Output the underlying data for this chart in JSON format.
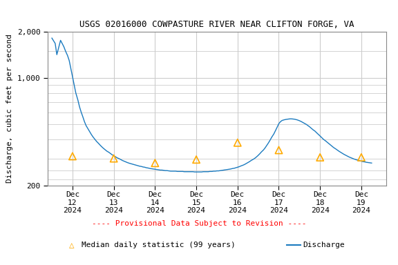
{
  "title": "USGS 02016000 COWPASTURE RIVER NEAR CLIFTON FORGE, VA",
  "ylabel": "Discharge, cubic feet per second",
  "ylim": [
    200,
    2000
  ],
  "background_color": "#ffffff",
  "grid_color": "#cccccc",
  "discharge_color": "#1a7abf",
  "median_color": "#ffaa00",
  "provisional_color": "#ff0000",
  "discharge_x": [
    0.0,
    0.04,
    0.08,
    0.12,
    0.17,
    0.21,
    0.25,
    0.29,
    0.33,
    0.38,
    0.42,
    0.46,
    0.5,
    0.54,
    0.58,
    0.63,
    0.67,
    0.71,
    0.75,
    0.79,
    0.83,
    0.88,
    0.92,
    0.96,
    1.0,
    1.04,
    1.08,
    1.13,
    1.17,
    1.21,
    1.25,
    1.29,
    1.33,
    1.38,
    1.42,
    1.46,
    1.5,
    1.54,
    1.58,
    1.63,
    1.67,
    1.71,
    1.75,
    1.79,
    1.83,
    1.88,
    1.92,
    1.96,
    2.0,
    2.04,
    2.08,
    2.13,
    2.17,
    2.21,
    2.25,
    2.29,
    2.33,
    2.38,
    2.42,
    2.46,
    2.5,
    2.54,
    2.58,
    2.63,
    2.67,
    2.71,
    2.75,
    2.79,
    2.83,
    2.88,
    2.92,
    2.96,
    3.0,
    3.04,
    3.08,
    3.13,
    3.17,
    3.21,
    3.25,
    3.29,
    3.33,
    3.38,
    3.42,
    3.46,
    3.5,
    3.54,
    3.58,
    3.63,
    3.67,
    3.71,
    3.75,
    3.79,
    3.83,
    3.88,
    3.92,
    3.96,
    4.0,
    4.04,
    4.08,
    4.13,
    4.17,
    4.21,
    4.25,
    4.29,
    4.33,
    4.38,
    4.42,
    4.46,
    4.5,
    4.54,
    4.58,
    4.63,
    4.67,
    4.71,
    4.75,
    4.79,
    4.83,
    4.88,
    4.92,
    4.96,
    5.0,
    5.04,
    5.08,
    5.13,
    5.17,
    5.21,
    5.25,
    5.29,
    5.33,
    5.38,
    5.42,
    5.46,
    5.5,
    5.54,
    5.58,
    5.63,
    5.67,
    5.71,
    5.75,
    5.79,
    5.83,
    5.88,
    5.92,
    5.96,
    6.0,
    6.04,
    6.08,
    6.13,
    6.17,
    6.21,
    6.25,
    6.29,
    6.33,
    6.38,
    6.42,
    6.46,
    6.5,
    6.54,
    6.58,
    6.63,
    6.67,
    6.71,
    6.75,
    6.79,
    6.83,
    6.88,
    6.92,
    6.96,
    7.0,
    7.04,
    7.08,
    7.13,
    7.17,
    7.21,
    7.25,
    7.29,
    7.33,
    7.38,
    7.42,
    7.46,
    7.5,
    7.54,
    7.58,
    7.63,
    7.67,
    7.71,
    7.75
  ],
  "discharge_y": [
    1820,
    1750,
    1680,
    1420,
    1600,
    1760,
    1680,
    1600,
    1500,
    1400,
    1300,
    1150,
    1020,
    900,
    800,
    720,
    650,
    600,
    560,
    520,
    490,
    465,
    445,
    428,
    413,
    400,
    388,
    376,
    366,
    357,
    349,
    342,
    335,
    329,
    323,
    317,
    312,
    308,
    303,
    299,
    295,
    291,
    288,
    285,
    282,
    279,
    277,
    275,
    273,
    271,
    269,
    267,
    266,
    264,
    263,
    261,
    260,
    258,
    257,
    256,
    255,
    254,
    253,
    252,
    252,
    251,
    250,
    250,
    249,
    248,
    248,
    248,
    248,
    247,
    247,
    247,
    247,
    246,
    246,
    246,
    246,
    246,
    246,
    245,
    245,
    245,
    245,
    245,
    246,
    246,
    246,
    246,
    247,
    247,
    248,
    248,
    249,
    249,
    250,
    251,
    252,
    253,
    254,
    255,
    256,
    258,
    259,
    261,
    263,
    265,
    268,
    271,
    274,
    278,
    282,
    286,
    291,
    296,
    301,
    307,
    314,
    322,
    331,
    341,
    352,
    365,
    379,
    395,
    413,
    433,
    455,
    479,
    505,
    520,
    530,
    535,
    538,
    540,
    542,
    543,
    542,
    540,
    537,
    533,
    528,
    522,
    515,
    507,
    499,
    490,
    481,
    471,
    461,
    451,
    440,
    430,
    420,
    410,
    400,
    391,
    383,
    375,
    367,
    360,
    353,
    346,
    340,
    334,
    329,
    324,
    319,
    314,
    310,
    306,
    303,
    300,
    297,
    294,
    292,
    290,
    288,
    286,
    285,
    283,
    282,
    281,
    280
  ],
  "median_x": [
    0.5,
    1.5,
    2.5,
    3.5,
    4.5,
    5.5,
    6.5,
    7.5
  ],
  "median_y": [
    310,
    300,
    280,
    295,
    380,
    340,
    305,
    305
  ],
  "xtick_positions": [
    0.5,
    1.5,
    2.5,
    3.5,
    4.5,
    5.5,
    6.5,
    7.5
  ],
  "xtick_labels": [
    "Dec\n12\n2024",
    "Dec\n13\n2024",
    "Dec\n14\n2024",
    "Dec\n15\n2024",
    "Dec\n16\n2024",
    "Dec\n17\n2024",
    "Dec\n18\n2024",
    "Dec\n19\n2024"
  ],
  "yticks": [
    200,
    1000,
    2000
  ],
  "legend_provisional_text": "---- Provisional Data Subject to Revision ----",
  "legend_median_text": "Median daily statistic (99 years)",
  "legend_discharge_text": "Discharge",
  "title_fontsize": 9,
  "axis_fontsize": 8,
  "tick_fontsize": 8,
  "legend_fontsize": 8
}
